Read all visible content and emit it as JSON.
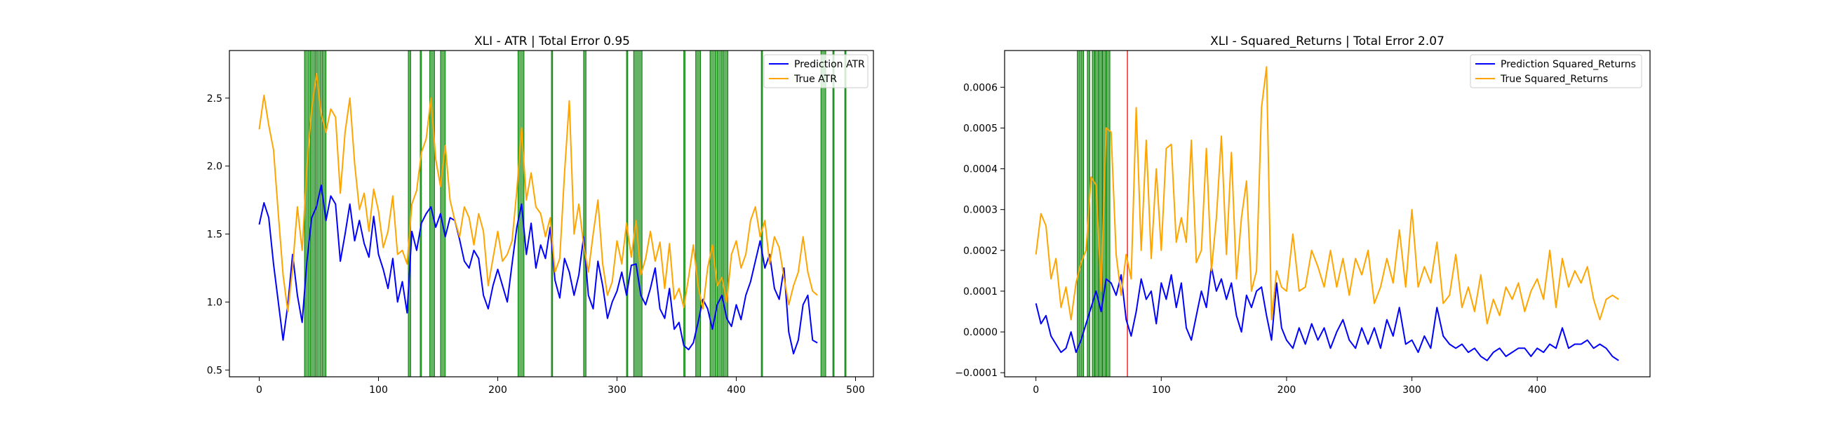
{
  "chart_data": [
    {
      "type": "line",
      "title": "XLI - ATR | Total Error 0.95",
      "xlabel": "",
      "ylabel": "",
      "xlim": [
        -25,
        515
      ],
      "ylim": [
        0.45,
        2.85
      ],
      "xticks": [
        0,
        100,
        200,
        300,
        400,
        500
      ],
      "yticks": [
        0.5,
        1.0,
        1.5,
        2.0,
        2.5
      ],
      "xtick_labels": [
        "0",
        "100",
        "200",
        "300",
        "400",
        "500"
      ],
      "ytick_labels": [
        "0.5",
        "1.0",
        "1.5",
        "2.0",
        "2.5"
      ],
      "grid": false,
      "legend_position": "top-right",
      "series": [
        {
          "name": "Prediction ATR",
          "color": "#0000ff",
          "x": [
            0,
            4,
            8,
            12,
            16,
            20,
            24,
            28,
            32,
            36,
            40,
            44,
            48,
            52,
            56,
            60,
            64,
            68,
            72,
            76,
            80,
            84,
            88,
            92,
            96,
            100,
            104,
            108,
            112,
            116,
            120,
            124,
            128,
            132,
            136,
            140,
            144,
            148,
            152,
            156,
            160,
            164,
            168,
            172,
            176,
            180,
            184,
            188,
            192,
            196,
            200,
            204,
            208,
            212,
            216,
            220,
            224,
            228,
            232,
            236,
            240,
            244,
            248,
            252,
            256,
            260,
            264,
            268,
            272,
            276,
            280,
            284,
            288,
            292,
            296,
            300,
            304,
            308,
            312,
            316,
            320,
            324,
            328,
            332,
            336,
            340,
            344,
            348,
            352,
            356,
            360,
            364,
            368,
            372,
            376,
            380,
            384,
            388,
            392,
            396,
            400,
            404,
            408,
            412,
            416,
            420,
            424,
            428,
            432,
            436,
            440,
            444,
            448,
            452,
            456,
            460,
            464,
            468
          ],
          "y": [
            1.57,
            1.73,
            1.62,
            1.28,
            1.0,
            0.72,
            0.98,
            1.35,
            1.05,
            0.85,
            1.3,
            1.62,
            1.7,
            1.86,
            1.6,
            1.78,
            1.72,
            1.3,
            1.5,
            1.72,
            1.45,
            1.6,
            1.43,
            1.33,
            1.63,
            1.35,
            1.24,
            1.1,
            1.32,
            1.0,
            1.15,
            0.92,
            1.52,
            1.38,
            1.58,
            1.65,
            1.7,
            1.55,
            1.65,
            1.48,
            1.62,
            1.6,
            1.46,
            1.3,
            1.25,
            1.38,
            1.32,
            1.05,
            0.95,
            1.12,
            1.24,
            1.12,
            1.0,
            1.28,
            1.55,
            1.72,
            1.35,
            1.58,
            1.25,
            1.42,
            1.32,
            1.55,
            1.16,
            1.03,
            1.32,
            1.22,
            1.05,
            1.2,
            1.48,
            1.05,
            0.95,
            1.3,
            1.12,
            0.88,
            1.0,
            1.08,
            1.22,
            1.05,
            1.27,
            1.28,
            1.05,
            0.98,
            1.1,
            1.25,
            0.95,
            0.88,
            1.1,
            0.8,
            0.85,
            0.68,
            0.65,
            0.7,
            0.85,
            1.02,
            0.95,
            0.8,
            0.98,
            1.05,
            0.88,
            0.82,
            0.98,
            0.87,
            1.05,
            1.15,
            1.3,
            1.45,
            1.25,
            1.35,
            1.1,
            1.02,
            1.25,
            0.78,
            0.62,
            0.72,
            0.98,
            1.05,
            0.72,
            0.7
          ]
        },
        {
          "name": "True ATR",
          "color": "#ffa500",
          "x": [
            0,
            4,
            8,
            12,
            16,
            20,
            24,
            28,
            32,
            36,
            40,
            44,
            48,
            52,
            56,
            60,
            64,
            68,
            72,
            76,
            80,
            84,
            88,
            92,
            96,
            100,
            104,
            108,
            112,
            116,
            120,
            124,
            128,
            132,
            136,
            140,
            144,
            148,
            152,
            156,
            160,
            164,
            168,
            172,
            176,
            180,
            184,
            188,
            192,
            196,
            200,
            204,
            208,
            212,
            216,
            220,
            224,
            228,
            232,
            236,
            240,
            244,
            248,
            252,
            256,
            260,
            264,
            268,
            272,
            276,
            280,
            284,
            288,
            292,
            296,
            300,
            304,
            308,
            312,
            316,
            320,
            324,
            328,
            332,
            336,
            340,
            344,
            348,
            352,
            356,
            360,
            364,
            368,
            372,
            376,
            380,
            384,
            388,
            392,
            396,
            400,
            404,
            408,
            412,
            416,
            420,
            424,
            428,
            432,
            436,
            440,
            444,
            448,
            452,
            456,
            460,
            464,
            468
          ],
          "y": [
            2.27,
            2.52,
            2.3,
            2.12,
            1.65,
            1.2,
            0.93,
            1.25,
            1.7,
            1.38,
            2.0,
            2.42,
            2.68,
            2.38,
            2.25,
            2.42,
            2.36,
            1.8,
            2.25,
            2.5,
            2.02,
            1.68,
            1.8,
            1.52,
            1.83,
            1.67,
            1.4,
            1.52,
            1.78,
            1.35,
            1.38,
            1.28,
            1.72,
            1.82,
            2.1,
            2.2,
            2.5,
            2.05,
            1.85,
            2.15,
            1.75,
            1.6,
            1.48,
            1.7,
            1.62,
            1.42,
            1.65,
            1.52,
            1.12,
            1.32,
            1.52,
            1.3,
            1.35,
            1.45,
            1.82,
            2.28,
            1.75,
            1.95,
            1.7,
            1.65,
            1.48,
            1.62,
            1.22,
            1.32,
            1.95,
            2.48,
            1.5,
            1.72,
            1.42,
            1.22,
            1.5,
            1.75,
            1.28,
            1.05,
            1.15,
            1.45,
            1.28,
            1.58,
            1.33,
            1.6,
            1.2,
            1.32,
            1.52,
            1.3,
            1.44,
            1.1,
            1.43,
            1.02,
            1.1,
            0.96,
            1.18,
            1.42,
            1.12,
            0.95,
            1.25,
            1.42,
            1.12,
            1.18,
            1.0,
            1.35,
            1.45,
            1.25,
            1.35,
            1.6,
            1.7,
            1.48,
            1.6,
            1.28,
            1.48,
            1.4,
            1.18,
            0.98,
            1.12,
            1.22,
            1.48,
            1.22,
            1.08,
            1.05
          ]
        }
      ],
      "highlight_color": "#008000",
      "highlight_spans": [
        [
          38,
          42
        ],
        [
          43,
          47
        ],
        [
          48,
          52
        ],
        [
          53,
          56
        ],
        [
          125,
          127
        ],
        [
          135,
          136
        ],
        [
          143,
          147
        ],
        [
          152,
          156
        ],
        [
          217,
          222
        ],
        [
          245,
          246
        ],
        [
          272,
          274
        ],
        [
          308,
          309
        ],
        [
          314,
          321
        ],
        [
          356,
          357
        ],
        [
          366,
          370
        ],
        [
          378,
          383
        ],
        [
          384,
          388
        ],
        [
          389,
          393
        ],
        [
          421,
          422
        ],
        [
          471,
          475
        ],
        [
          481,
          482
        ],
        [
          491,
          492
        ]
      ]
    },
    {
      "type": "line",
      "title": "XLI - Squared_Returns | Total Error 2.07",
      "xlabel": "",
      "ylabel": "",
      "xlim": [
        -25,
        490
      ],
      "ylim": [
        -0.00011,
        0.00069
      ],
      "xticks": [
        0,
        100,
        200,
        300,
        400
      ],
      "yticks": [
        -0.0001,
        0.0,
        0.0001,
        0.0002,
        0.0003,
        0.0004,
        0.0005,
        0.0006
      ],
      "xtick_labels": [
        "0",
        "100",
        "200",
        "300",
        "400"
      ],
      "ytick_labels": [
        "−0.0001",
        "0.0000",
        "0.0001",
        "0.0002",
        "0.0003",
        "0.0004",
        "0.0005",
        "0.0006"
      ],
      "grid": false,
      "legend_position": "top-right",
      "series": [
        {
          "name": "Prediction Squared_Returns",
          "color": "#0000ff",
          "x": [
            0,
            4,
            8,
            12,
            16,
            20,
            24,
            28,
            32,
            36,
            40,
            44,
            48,
            52,
            56,
            60,
            64,
            68,
            72,
            76,
            80,
            84,
            88,
            92,
            96,
            100,
            104,
            108,
            112,
            116,
            120,
            124,
            128,
            132,
            136,
            140,
            144,
            148,
            152,
            156,
            160,
            164,
            168,
            172,
            176,
            180,
            184,
            188,
            192,
            196,
            200,
            205,
            210,
            215,
            220,
            225,
            230,
            235,
            240,
            245,
            250,
            255,
            260,
            265,
            270,
            275,
            280,
            285,
            290,
            295,
            300,
            305,
            310,
            315,
            320,
            325,
            330,
            335,
            340,
            345,
            350,
            355,
            360,
            365,
            370,
            375,
            380,
            385,
            390,
            395,
            400,
            405,
            410,
            415,
            420,
            425,
            430,
            435,
            440,
            445,
            450,
            455,
            460,
            465
          ],
          "y": [
            7e-05,
            2e-05,
            4e-05,
            -1e-05,
            -3e-05,
            -5e-05,
            -4e-05,
            0.0,
            -5e-05,
            -2e-05,
            2e-05,
            6e-05,
            0.0001,
            5e-05,
            0.00013,
            0.00012,
            9e-05,
            0.00014,
            3e-05,
            -1e-05,
            5e-05,
            0.00013,
            8e-05,
            0.0001,
            2e-05,
            0.00012,
            8e-05,
            0.00014,
            6e-05,
            0.00012,
            1e-05,
            -2e-05,
            4e-05,
            0.0001,
            6e-05,
            0.00016,
            0.0001,
            0.00013,
            8e-05,
            0.00012,
            4e-05,
            0.0,
            9e-05,
            6e-05,
            0.0001,
            0.00011,
            4e-05,
            -2e-05,
            0.00012,
            1e-05,
            -2e-05,
            -4e-05,
            1e-05,
            -3e-05,
            2e-05,
            -2e-05,
            1e-05,
            -4e-05,
            0.0,
            3e-05,
            -2e-05,
            -4e-05,
            1e-05,
            -3e-05,
            1e-05,
            -4e-05,
            3e-05,
            -1e-05,
            6e-05,
            -3e-05,
            -2e-05,
            -5e-05,
            -1e-05,
            -4e-05,
            6e-05,
            -1e-05,
            -3e-05,
            -4e-05,
            -3e-05,
            -5e-05,
            -4e-05,
            -6e-05,
            -7e-05,
            -5e-05,
            -4e-05,
            -6e-05,
            -5e-05,
            -4e-05,
            -4e-05,
            -6e-05,
            -4e-05,
            -5e-05,
            -3e-05,
            -4e-05,
            1e-05,
            -4e-05,
            -3e-05,
            -3e-05,
            -2e-05,
            -4e-05,
            -3e-05,
            -4e-05,
            -6e-05,
            -7e-05
          ]
        },
        {
          "name": "True Squared_Returns",
          "color": "#ffa500",
          "x": [
            0,
            4,
            8,
            12,
            16,
            20,
            24,
            28,
            32,
            36,
            40,
            44,
            48,
            52,
            56,
            60,
            64,
            68,
            72,
            76,
            80,
            84,
            88,
            92,
            96,
            100,
            104,
            108,
            112,
            116,
            120,
            124,
            128,
            132,
            136,
            140,
            144,
            148,
            152,
            156,
            160,
            164,
            168,
            172,
            176,
            180,
            184,
            188,
            192,
            196,
            200,
            205,
            210,
            215,
            220,
            225,
            230,
            235,
            240,
            245,
            250,
            255,
            260,
            265,
            270,
            275,
            280,
            285,
            290,
            295,
            300,
            305,
            310,
            315,
            320,
            325,
            330,
            335,
            340,
            345,
            350,
            355,
            360,
            365,
            370,
            375,
            380,
            385,
            390,
            395,
            400,
            405,
            410,
            415,
            420,
            425,
            430,
            435,
            440,
            445,
            450,
            455,
            460,
            465
          ],
          "y": [
            0.00019,
            0.00029,
            0.00026,
            0.00013,
            0.00018,
            6e-05,
            0.00011,
            3e-05,
            0.00012,
            0.00017,
            0.0002,
            0.00038,
            0.00036,
            0.0001,
            0.0005,
            0.00049,
            0.00019,
            9e-05,
            0.00019,
            0.00013,
            0.00055,
            0.0002,
            0.00047,
            0.00018,
            0.0004,
            0.0002,
            0.00045,
            0.00046,
            0.00022,
            0.00028,
            0.00022,
            0.00047,
            0.00017,
            0.0002,
            0.00045,
            0.00015,
            0.00028,
            0.00048,
            0.00019,
            0.00044,
            0.00013,
            0.00028,
            0.00037,
            0.0001,
            0.00015,
            0.00055,
            0.00065,
            3e-05,
            0.00015,
            0.00011,
            0.0001,
            0.00024,
            0.0001,
            0.00011,
            0.0002,
            0.00016,
            0.00011,
            0.0002,
            0.00011,
            0.00018,
            9e-05,
            0.00018,
            0.00014,
            0.0002,
            7e-05,
            0.00011,
            0.00018,
            0.00012,
            0.00025,
            0.00011,
            0.0003,
            0.00011,
            0.00016,
            0.00012,
            0.00022,
            7e-05,
            9e-05,
            0.00019,
            6e-05,
            0.00011,
            5e-05,
            0.00014,
            2e-05,
            8e-05,
            4e-05,
            0.00011,
            8e-05,
            0.00012,
            5e-05,
            0.0001,
            0.00013,
            8e-05,
            0.0002,
            6e-05,
            0.00018,
            0.00011,
            0.00015,
            0.00012,
            0.00016,
            8e-05,
            3e-05,
            8e-05,
            9e-05,
            8e-05
          ]
        }
      ],
      "highlight_color": "#008000",
      "highlight_spans": [
        [
          33,
          35
        ],
        [
          36,
          38
        ],
        [
          41,
          43
        ],
        [
          45,
          47
        ],
        [
          47,
          50
        ],
        [
          50,
          53
        ],
        [
          53,
          56
        ],
        [
          56,
          59
        ]
      ],
      "marker_lines": [
        {
          "x": 73,
          "color": "#ff0000"
        }
      ]
    }
  ]
}
